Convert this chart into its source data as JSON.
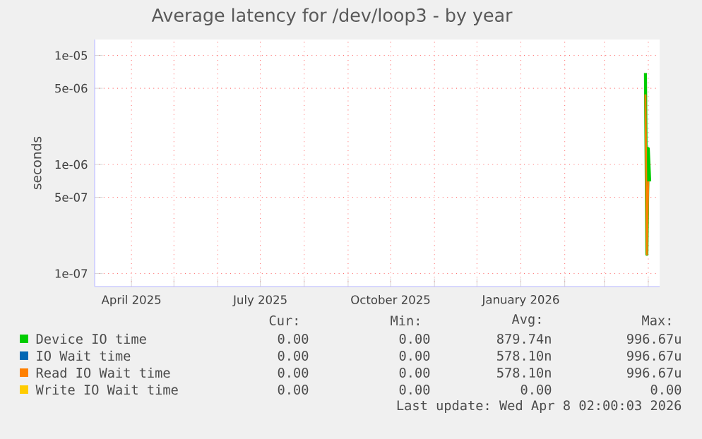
{
  "chart_data": {
    "type": "line",
    "title": "Average latency for /dev/loop3 - by year",
    "ylabel": "seconds",
    "log": "y",
    "grid": true,
    "legend": "bottom",
    "marker": "none",
    "xlim": [
      "2025-03-06",
      "2026-04-09"
    ],
    "xticks": [
      {
        "value": "2025-04-01",
        "label": "April 2025"
      },
      {
        "value": "2025-05-01",
        "label": null
      },
      {
        "value": "2025-06-01",
        "label": null
      },
      {
        "value": "2025-07-01",
        "label": "July 2025"
      },
      {
        "value": "2025-08-01",
        "label": null
      },
      {
        "value": "2025-09-01",
        "label": null
      },
      {
        "value": "2025-10-01",
        "label": "October 2025"
      },
      {
        "value": "2025-11-01",
        "label": null
      },
      {
        "value": "2025-12-01",
        "label": null
      },
      {
        "value": "2026-01-01",
        "label": "January 2026"
      },
      {
        "value": "2026-02-01",
        "label": null
      },
      {
        "value": "2026-03-01",
        "label": null
      },
      {
        "value": "2026-04-01",
        "label": null
      }
    ],
    "ylim": [
      7.6e-08,
      1.4e-05
    ],
    "yticks": [
      {
        "value": 1e-07,
        "label": "1e-07"
      },
      {
        "value": 5e-07,
        "label": "5e-07"
      },
      {
        "value": 1e-06,
        "label": "1e-06"
      },
      {
        "value": 5e-06,
        "label": "5e-06"
      },
      {
        "value": 1e-05,
        "label": "1e-05"
      }
    ],
    "x": [
      "2026-03-30",
      "2026-03-31",
      "2026-04-01",
      "2026-04-02"
    ],
    "series": [
      {
        "name": "Device IO time",
        "color": "#00cc00",
        "values": [
          6.9e-06,
          1.5e-07,
          1.4e-06,
          7e-07
        ]
      },
      {
        "name": "IO Wait time",
        "color": "#0066b3",
        "values": [
          null,
          null,
          null,
          null
        ]
      },
      {
        "name": "Read IO Wait time",
        "color": "#ff8000",
        "values": [
          4.4e-06,
          1.5e-07,
          7e-07,
          null
        ]
      },
      {
        "name": "Write IO Wait time",
        "color": "#ffcc00",
        "values": [
          null,
          null,
          null,
          null
        ]
      }
    ],
    "annotations": [
      "Cur:",
      "Min:",
      "Avg:",
      "Max:",
      "0.00",
      "0.00",
      "879.74n",
      "996.67u",
      "0.00",
      "0.00",
      "578.10n",
      "996.67u",
      "0.00",
      "0.00",
      "578.10n",
      "996.67u",
      "0.00",
      "0.00",
      "0.00",
      "0.00",
      "Last update: Wed Apr 8 02:00:03 2026"
    ]
  }
}
